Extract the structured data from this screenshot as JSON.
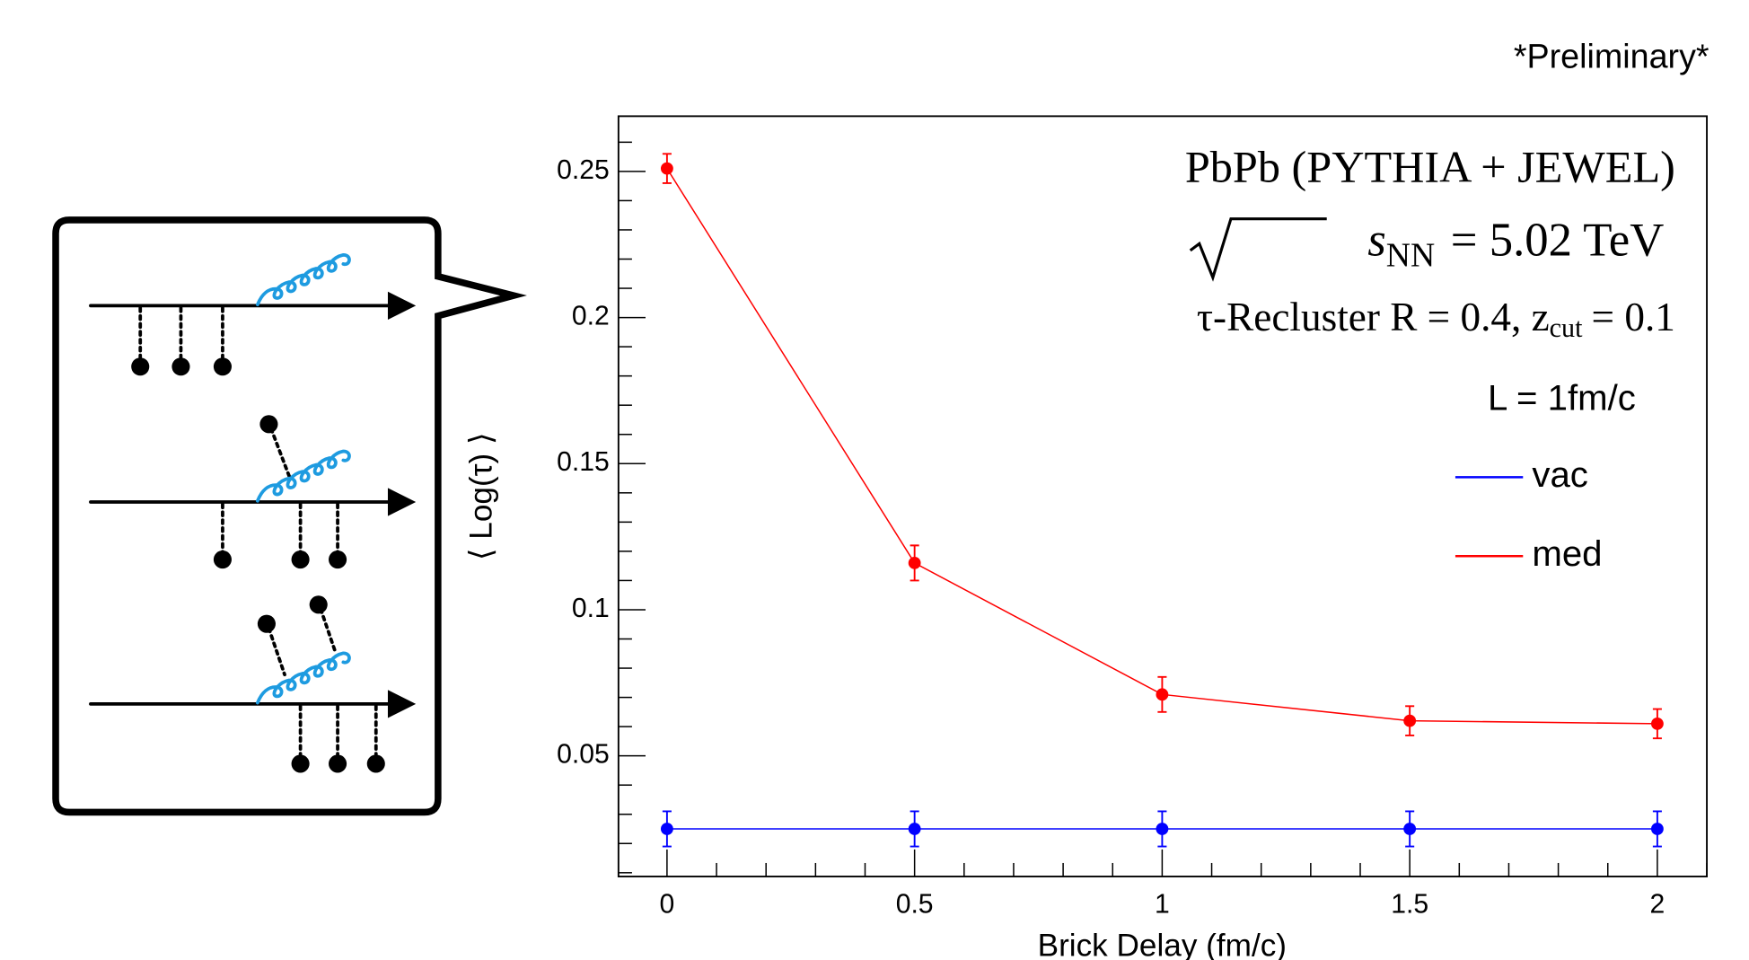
{
  "chart_data": {
    "type": "line",
    "note_top": "*Preliminary*",
    "annotations": {
      "system": "PbPb (PYTHIA + JEWEL)",
      "energy": {
        "base": "s",
        "sub": "NN",
        "text": "= 5.02 TeV"
      },
      "recluster": {
        "text": "τ-Recluster R = 0.4, z",
        "sub": "cut",
        "rest": "= 0.1"
      }
    },
    "legend_title": "L = 1fm/c",
    "x_label": "Brick Delay (fm/c)",
    "y_label": "⟨ Log(τ) ⟩",
    "x": [
      0,
      0.5,
      1,
      1.5,
      2
    ],
    "series": [
      {
        "name": "vac",
        "color": "#0000ff",
        "values": [
          0.025,
          0.025,
          0.025,
          0.025,
          0.025
        ],
        "errors": [
          0.006,
          0.006,
          0.006,
          0.006,
          0.006
        ]
      },
      {
        "name": "med",
        "color": "#ff0000",
        "values": [
          0.251,
          0.116,
          0.071,
          0.062,
          0.061
        ],
        "errors": [
          0.005,
          0.006,
          0.006,
          0.005,
          0.005
        ]
      }
    ],
    "xlim": [
      -0.098,
      2.1
    ],
    "ylim": [
      0.0087,
      0.2689
    ],
    "xticks": [
      0,
      0.5,
      1,
      1.5,
      2
    ],
    "yticks": [
      0.05,
      0.1,
      0.15,
      0.2,
      0.25
    ]
  }
}
